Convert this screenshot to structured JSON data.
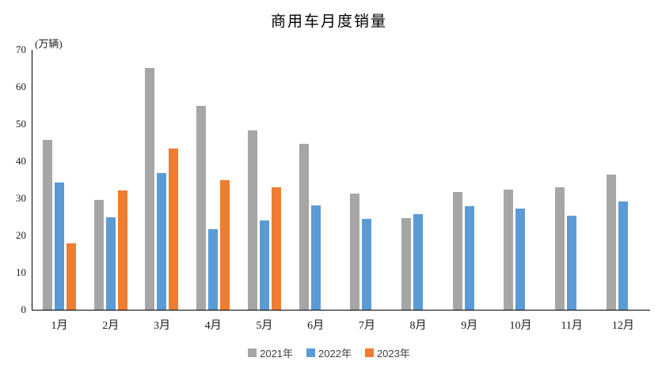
{
  "chart_data": {
    "type": "bar",
    "title": "商用车月度销量",
    "unit_label": "(万辆)",
    "categories": [
      "1月",
      "2月",
      "3月",
      "4月",
      "5月",
      "6月",
      "7月",
      "8月",
      "9月",
      "10月",
      "11月",
      "12月"
    ],
    "series": [
      {
        "name": "2021年",
        "color": "#A6A6A6",
        "values": [
          45.8,
          29.5,
          65.2,
          55.0,
          48.2,
          44.6,
          31.2,
          24.6,
          31.7,
          32.4,
          33.0,
          36.4
        ]
      },
      {
        "name": "2022年",
        "color": "#5B9BD5",
        "values": [
          34.2,
          24.9,
          36.9,
          21.7,
          24.0,
          28.1,
          24.5,
          25.7,
          27.8,
          27.2,
          25.3,
          29.2
        ]
      },
      {
        "name": "2023年",
        "color": "#ED7D31",
        "values": [
          17.8,
          32.1,
          43.4,
          34.8,
          32.9,
          null,
          null,
          null,
          null,
          null,
          null,
          null
        ]
      }
    ],
    "ylim": [
      0,
      70
    ],
    "yticks": [
      0,
      10,
      20,
      30,
      40,
      50,
      60,
      70
    ],
    "grid": false,
    "legend_position": "bottom",
    "axis_color": "#000000",
    "text_color": "#1a1a1a"
  }
}
